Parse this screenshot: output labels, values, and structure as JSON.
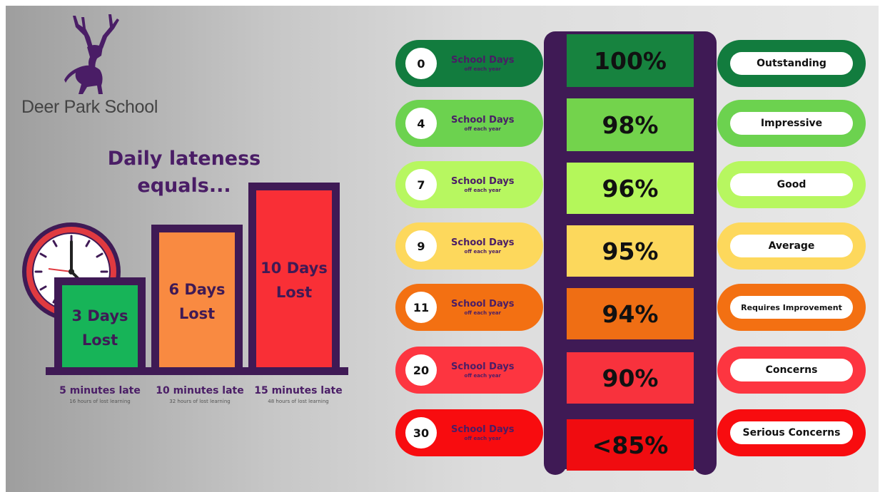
{
  "school": {
    "name": "Deer Park School",
    "logo_icon": "deer-stag-icon"
  },
  "headline": {
    "line1": "Daily lateness",
    "line2": "equals..."
  },
  "clock_icon": "clock-icon",
  "bars": [
    {
      "line1": "3 Days",
      "line2": "Lost",
      "late": "5 minutes late",
      "sub": "16 hours of lost learning",
      "color": "#17b458"
    },
    {
      "line1": "6 Days",
      "line2": "Lost",
      "late": "10 minutes late",
      "sub": "32 hours of lost learning",
      "color": "#f98a41"
    },
    {
      "line1": "10 Days",
      "line2": "Lost",
      "late": "15 minutes late",
      "sub": "48 hours of lost learning",
      "color": "#f92f36"
    }
  ],
  "attendance": {
    "days_label": "School Days",
    "days_sub": "off each year",
    "rows": [
      {
        "days": "0",
        "percent": "100%",
        "rating": "Outstanding",
        "color": "#127c3e",
        "box": "#17833f"
      },
      {
        "days": "4",
        "percent": "98%",
        "rating": "Impressive",
        "color": "#6cd24f",
        "box": "#73d34c"
      },
      {
        "days": "7",
        "percent": "96%",
        "rating": "Good",
        "color": "#b7f760",
        "box": "#b4f75a"
      },
      {
        "days": "9",
        "percent": "95%",
        "rating": "Average",
        "color": "#fdd85c",
        "box": "#fcd85c"
      },
      {
        "days": "11",
        "percent": "94%",
        "rating": "Requires Improvement",
        "color": "#f37012",
        "box": "#ef6e14"
      },
      {
        "days": "20",
        "percent": "90%",
        "rating": "Concerns",
        "color": "#fd3540",
        "box": "#f8323d"
      },
      {
        "days": "30",
        "percent": "<85%",
        "rating": "Serious Concerns",
        "color": "#f80c0f",
        "box": "#f00c10"
      }
    ]
  },
  "colors": {
    "purple": "#3f1a55",
    "text_purple": "#4a1d66"
  }
}
